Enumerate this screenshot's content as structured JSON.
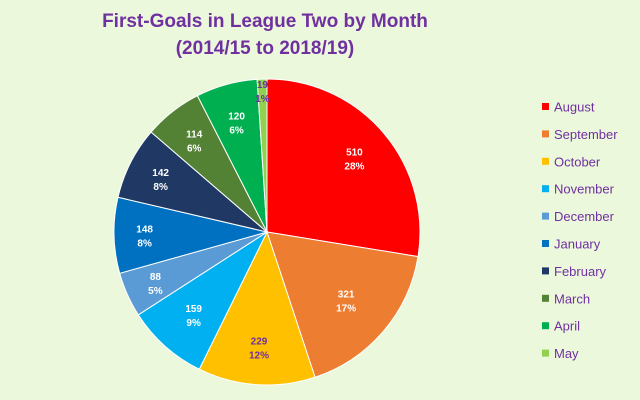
{
  "chart_data": {
    "type": "pie",
    "title_lines": [
      "First-Goals in League Two by Month",
      "(2014/15 to 2018/19)"
    ],
    "categories": [
      "August",
      "September",
      "October",
      "November",
      "December",
      "January",
      "February",
      "March",
      "April",
      "May"
    ],
    "values": [
      510,
      321,
      229,
      159,
      88,
      148,
      142,
      114,
      120,
      19
    ],
    "percent_labels": [
      "28%",
      "17%",
      "12%",
      "9%",
      "5%",
      "8%",
      "8%",
      "6%",
      "6%",
      "1%"
    ],
    "colors": [
      "#ff0000",
      "#ed7d31",
      "#ffc000",
      "#00b0f0",
      "#5b9bd5",
      "#0070c0",
      "#203864",
      "#548235",
      "#00b050",
      "#92d050"
    ],
    "legend_position": "right",
    "label_color_light": "#ffffff",
    "label_color_dark": "#7030a0",
    "background": "#ebf8dc",
    "title_color": "#7030a0"
  }
}
